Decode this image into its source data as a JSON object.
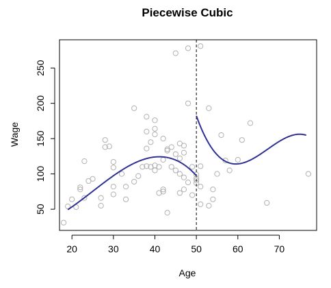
{
  "chart_data": {
    "type": "scatter",
    "title": "Piecewise Cubic",
    "xlabel": "Age",
    "ylabel": "Wage",
    "xlim": [
      17,
      79
    ],
    "ylim": [
      20,
      290
    ],
    "x_ticks": [
      20,
      30,
      40,
      50,
      60,
      70
    ],
    "y_ticks": [
      50,
      100,
      150,
      200,
      250
    ],
    "knot": 50,
    "colors": {
      "points": "#b0b0b0",
      "fit": "#2e3192",
      "knot_line": "#000000"
    },
    "points": [
      [
        18,
        31
      ],
      [
        19,
        54
      ],
      [
        20,
        64
      ],
      [
        21,
        53
      ],
      [
        22,
        78
      ],
      [
        22,
        81
      ],
      [
        23,
        118
      ],
      [
        23,
        66
      ],
      [
        24,
        90
      ],
      [
        25,
        93
      ],
      [
        27,
        66
      ],
      [
        27,
        55
      ],
      [
        28,
        148
      ],
      [
        28,
        138
      ],
      [
        29,
        139
      ],
      [
        30,
        117
      ],
      [
        30,
        109
      ],
      [
        30,
        82
      ],
      [
        30,
        71
      ],
      [
        32,
        100
      ],
      [
        33,
        82
      ],
      [
        33,
        64
      ],
      [
        35,
        193
      ],
      [
        35,
        89
      ],
      [
        36,
        97
      ],
      [
        37,
        110
      ],
      [
        38,
        181
      ],
      [
        38,
        160
      ],
      [
        38,
        136
      ],
      [
        38,
        111
      ],
      [
        39,
        110
      ],
      [
        39,
        145
      ],
      [
        40,
        176
      ],
      [
        40,
        164
      ],
      [
        40,
        156
      ],
      [
        40,
        112
      ],
      [
        40,
        105
      ],
      [
        41,
        73
      ],
      [
        41,
        110
      ],
      [
        42,
        150
      ],
      [
        42,
        120
      ],
      [
        42,
        78
      ],
      [
        42,
        75
      ],
      [
        43,
        135
      ],
      [
        43,
        133
      ],
      [
        43,
        45
      ],
      [
        44,
        138
      ],
      [
        44,
        110
      ],
      [
        45,
        271
      ],
      [
        45,
        105
      ],
      [
        45,
        128
      ],
      [
        46,
        143
      ],
      [
        46,
        122
      ],
      [
        46,
        100
      ],
      [
        46,
        73
      ],
      [
        47,
        140
      ],
      [
        47,
        130
      ],
      [
        47,
        95
      ],
      [
        47,
        78
      ],
      [
        48,
        278
      ],
      [
        48,
        200
      ],
      [
        48,
        88
      ],
      [
        49,
        110
      ],
      [
        49,
        70
      ],
      [
        50,
        99
      ],
      [
        50,
        94
      ],
      [
        50,
        91
      ],
      [
        50,
        87
      ],
      [
        51,
        281
      ],
      [
        51,
        111
      ],
      [
        51,
        82
      ],
      [
        51,
        57
      ],
      [
        53,
        193
      ],
      [
        53,
        55
      ],
      [
        54,
        78
      ],
      [
        54,
        64
      ],
      [
        55,
        100
      ],
      [
        56,
        155
      ],
      [
        57,
        119
      ],
      [
        58,
        105
      ],
      [
        60,
        120
      ],
      [
        61,
        148
      ],
      [
        63,
        172
      ],
      [
        67,
        59
      ],
      [
        77,
        100
      ]
    ],
    "series": [
      {
        "segment": "left",
        "x_range": [
          19,
          50
        ],
        "coefficients": [
          124,
          0.6,
          -0.265,
          -0.00592
        ]
      },
      {
        "segment": "right",
        "x_range": [
          50,
          76.5
        ],
        "coefficients": [
          114.2,
          0.5,
          0.5,
          -0.0231
        ]
      }
    ]
  }
}
